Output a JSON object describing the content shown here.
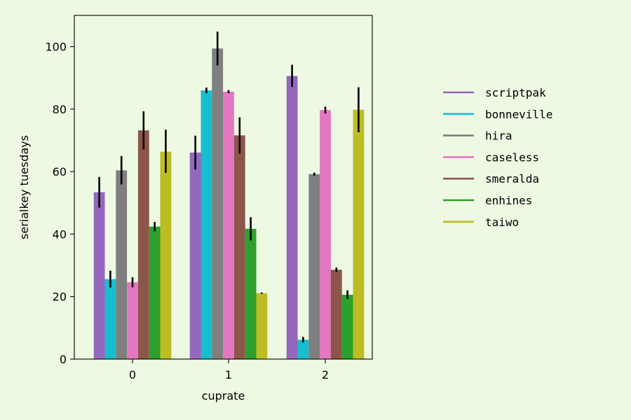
{
  "chart_data": {
    "type": "bar",
    "xlabel": "cuprate",
    "ylabel": "serialkey tuesdays",
    "categories": [
      "0",
      "1",
      "2"
    ],
    "ylim": [
      0,
      110
    ],
    "yticks": [
      0,
      20,
      40,
      60,
      80,
      100
    ],
    "grid": false,
    "legend_position": "right",
    "error_bars": true,
    "series": [
      {
        "name": "scriptpak",
        "color": "#9467bd",
        "values": [
          53.4,
          66.1,
          90.6
        ],
        "err_low": [
          48.5,
          60.7,
          87.1
        ],
        "err_high": [
          58.3,
          71.5,
          94.2
        ]
      },
      {
        "name": "bonneville",
        "color": "#17becf",
        "values": [
          25.6,
          86.0,
          6.2
        ],
        "err_low": [
          22.9,
          85.1,
          5.3
        ],
        "err_high": [
          28.3,
          86.9,
          7.1
        ]
      },
      {
        "name": "hira",
        "color": "#7f7f7f",
        "values": [
          60.4,
          99.4,
          59.2
        ],
        "err_low": [
          55.9,
          94.0,
          58.7
        ],
        "err_high": [
          65.0,
          104.8,
          59.7
        ]
      },
      {
        "name": "caseless",
        "color": "#e377c2",
        "values": [
          24.6,
          85.6,
          79.7
        ],
        "err_low": [
          23.0,
          85.1,
          78.6
        ],
        "err_high": [
          26.2,
          86.1,
          80.8
        ]
      },
      {
        "name": "smeralda",
        "color": "#8c564b",
        "values": [
          73.2,
          71.6,
          28.6
        ],
        "err_low": [
          67.1,
          65.8,
          27.9
        ],
        "err_high": [
          79.3,
          77.4,
          29.3
        ]
      },
      {
        "name": "enhines",
        "color": "#2ca02c",
        "values": [
          42.4,
          41.7,
          20.6
        ],
        "err_low": [
          40.9,
          38.0,
          19.2
        ],
        "err_high": [
          43.9,
          45.4,
          22.0
        ]
      },
      {
        "name": "taiwo",
        "color": "#bcbd22",
        "values": [
          66.4,
          21.1,
          79.8
        ],
        "err_low": [
          59.6,
          20.9,
          72.6
        ],
        "err_high": [
          73.4,
          21.3,
          87.0
        ]
      }
    ]
  }
}
